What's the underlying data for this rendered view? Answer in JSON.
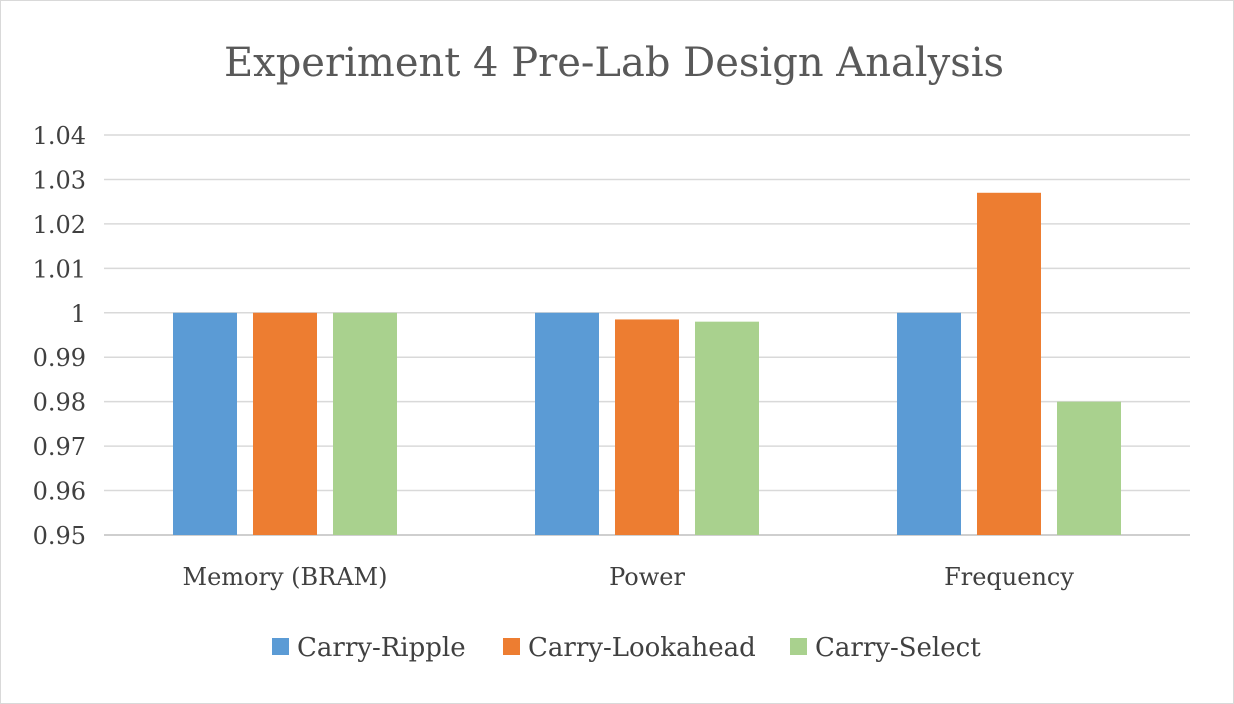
{
  "chart_data": {
    "type": "bar",
    "title": "Experiment 4 Pre-Lab Design Analysis",
    "xlabel": "",
    "ylabel": "",
    "ylim": [
      0.95,
      1.04
    ],
    "y_ticks": [
      "0.95",
      "0.96",
      "0.97",
      "0.98",
      "0.99",
      "1",
      "1.01",
      "1.02",
      "1.03",
      "1.04"
    ],
    "y_tick_values": [
      0.95,
      0.96,
      0.97,
      0.98,
      0.99,
      1.0,
      1.01,
      1.02,
      1.03,
      1.04
    ],
    "grid": true,
    "legend_position": "bottom",
    "categories": [
      "Memory (BRAM)",
      "Power",
      "Frequency"
    ],
    "series": [
      {
        "name": "Carry-Ripple",
        "color": "#5b9bd5",
        "values": [
          1.0,
          1.0,
          1.0
        ]
      },
      {
        "name": "Carry-Lookahead",
        "color": "#ed7d31",
        "values": [
          1.0,
          0.9985,
          1.027
        ]
      },
      {
        "name": "Carry-Select",
        "color": "#a9d18e",
        "values": [
          1.0,
          0.998,
          0.98
        ]
      }
    ]
  }
}
